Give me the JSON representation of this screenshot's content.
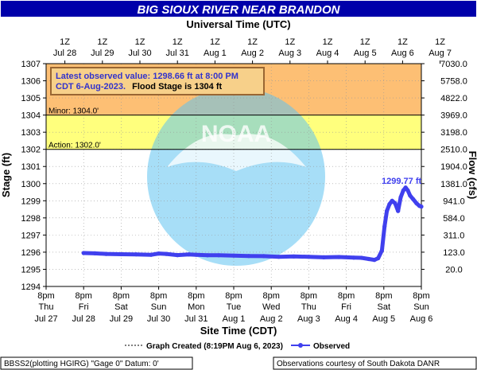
{
  "chart_data": {
    "type": "line",
    "title": "BIG SIOUX RIVER NEAR BRANDON",
    "top_axis_title": "Universal Time (UTC)",
    "top_ticks": [
      {
        "hour": "1Z",
        "date": "Jul 28"
      },
      {
        "hour": "1Z",
        "date": "Jul 29"
      },
      {
        "hour": "1Z",
        "date": "Jul 30"
      },
      {
        "hour": "1Z",
        "date": "Jul 31"
      },
      {
        "hour": "1Z",
        "date": "Aug 1"
      },
      {
        "hour": "1Z",
        "date": "Aug 2"
      },
      {
        "hour": "1Z",
        "date": "Aug 3"
      },
      {
        "hour": "1Z",
        "date": "Aug 4"
      },
      {
        "hour": "1Z",
        "date": "Aug 5"
      },
      {
        "hour": "1Z",
        "date": "Aug 6"
      },
      {
        "hour": "1Z",
        "date": "Aug 7"
      }
    ],
    "bottom_axis_title": "Site Time (CDT)",
    "bottom_ticks": [
      {
        "time": "8pm",
        "day": "Thu",
        "date": "Jul 27"
      },
      {
        "time": "8pm",
        "day": "Fri",
        "date": "Jul 28"
      },
      {
        "time": "8pm",
        "day": "Sat",
        "date": "Jul 29"
      },
      {
        "time": "8pm",
        "day": "Sun",
        "date": "Jul 30"
      },
      {
        "time": "8pm",
        "day": "Mon",
        "date": "Jul 31"
      },
      {
        "time": "8pm",
        "day": "Tue",
        "date": "Aug 1"
      },
      {
        "time": "8pm",
        "day": "Wed",
        "date": "Aug 2"
      },
      {
        "time": "8pm",
        "day": "Thu",
        "date": "Aug 3"
      },
      {
        "time": "8pm",
        "day": "Fri",
        "date": "Aug 4"
      },
      {
        "time": "8pm",
        "day": "Sat",
        "date": "Aug 5"
      },
      {
        "time": "8pm",
        "day": "Sun",
        "date": "Aug 6"
      }
    ],
    "ylabel": "Stage (ft)",
    "ylim": [
      1294,
      1307
    ],
    "y_ticks": [
      1294,
      1295,
      1296,
      1297,
      1298,
      1299,
      1300,
      1301,
      1302,
      1303,
      1304,
      1305,
      1306,
      1307
    ],
    "y2label": "Flow (cfs)",
    "y2_ticks": [
      "20.0",
      "123.0",
      "311.0",
      "584.0",
      "941.0",
      "1381.0",
      "1904.0",
      "2510.0",
      "3198.0",
      "3969.0",
      "4822.0",
      "5758.0",
      "7030.0"
    ],
    "xlim_days": [
      0,
      10
    ],
    "bands": [
      {
        "name": "flood",
        "from": 1304,
        "to": 1307,
        "color": "#fdb45c"
      },
      {
        "name": "minor",
        "from": 1302,
        "to": 1304,
        "color": "#ffff66"
      }
    ],
    "threshold_lines": [
      {
        "label": "Minor: 1304.0'",
        "value": 1304
      },
      {
        "label": "Action: 1302.0'",
        "value": 1302
      }
    ],
    "series": [
      {
        "name": "Observed",
        "color": "#4040ee",
        "points": [
          [
            1.0,
            1295.95
          ],
          [
            1.3,
            1295.93
          ],
          [
            1.6,
            1295.9
          ],
          [
            2.0,
            1295.88
          ],
          [
            2.4,
            1295.87
          ],
          [
            2.8,
            1295.85
          ],
          [
            3.0,
            1295.92
          ],
          [
            3.2,
            1295.9
          ],
          [
            3.5,
            1295.83
          ],
          [
            3.8,
            1295.87
          ],
          [
            4.0,
            1295.85
          ],
          [
            4.3,
            1295.82
          ],
          [
            4.6,
            1295.82
          ],
          [
            5.0,
            1295.8
          ],
          [
            5.4,
            1295.78
          ],
          [
            5.8,
            1295.77
          ],
          [
            6.2,
            1295.73
          ],
          [
            6.6,
            1295.75
          ],
          [
            7.0,
            1295.73
          ],
          [
            7.4,
            1295.7
          ],
          [
            7.8,
            1295.72
          ],
          [
            8.2,
            1295.68
          ],
          [
            8.4,
            1295.67
          ],
          [
            8.6,
            1295.6
          ],
          [
            8.75,
            1295.55
          ],
          [
            8.85,
            1295.65
          ],
          [
            8.95,
            1296.1
          ],
          [
            9.02,
            1297.5
          ],
          [
            9.08,
            1298.4
          ],
          [
            9.15,
            1298.8
          ],
          [
            9.22,
            1299.0
          ],
          [
            9.3,
            1298.85
          ],
          [
            9.38,
            1298.4
          ],
          [
            9.45,
            1299.2
          ],
          [
            9.52,
            1299.6
          ],
          [
            9.58,
            1299.77
          ],
          [
            9.64,
            1299.6
          ],
          [
            9.7,
            1299.3
          ],
          [
            9.78,
            1299.1
          ],
          [
            9.87,
            1298.85
          ],
          [
            9.95,
            1298.7
          ],
          [
            10.0,
            1298.66
          ]
        ]
      }
    ],
    "peak_label": "1299.77 ft",
    "info_box": {
      "line1": "Latest observed value: 1298.66 ft at 8:00 PM",
      "line2_colored": "CDT 6-Aug-2023.",
      "line2_black": "Flood Stage is 1304 ft"
    },
    "legend": {
      "graph_created": "Graph Created (8:19PM Aug 6, 2023)",
      "observed": "Observed"
    },
    "footer": {
      "left": "BBSS2(plotting HGIRG) \"Gage 0\" Datum: 0'",
      "right": "Observations courtesy of South Dakota DANR"
    },
    "watermark_text": "NOAA",
    "colors": {
      "title_bar": "#0000aa",
      "observed": "#4040ee",
      "info_text": "#3333cc",
      "info_bg": "#f7d08a",
      "info_border": "#996633",
      "peak_label": "#4040ee"
    }
  }
}
